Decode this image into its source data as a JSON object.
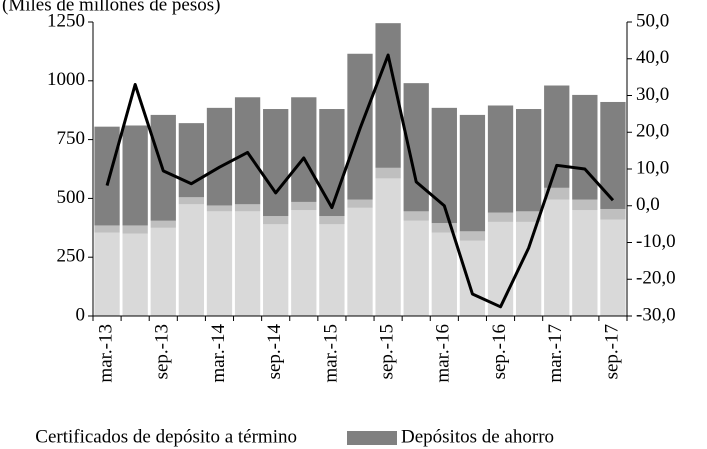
{
  "chart_data": {
    "type": "bar",
    "title": "(Miles de millones de pesos)",
    "categories": [
      "mar.-13",
      null,
      "sep.-13",
      null,
      "mar.-14",
      null,
      "sep.-14",
      null,
      "mar.-15",
      null,
      "sep.-15",
      null,
      "mar.-16",
      null,
      "sep.-16",
      null,
      "mar.-17",
      null,
      "sep.-17"
    ],
    "series": [
      {
        "name": "Certificados de depósito a término",
        "color": "#d9d9d9",
        "values": [
          355,
          350,
          375,
          475,
          445,
          445,
          390,
          450,
          390,
          460,
          585,
          405,
          355,
          320,
          400,
          400,
          495,
          450,
          410
        ]
      },
      {
        "color": "#bfbfbf",
        "values": [
          30,
          35,
          30,
          30,
          25,
          30,
          35,
          35,
          35,
          35,
          45,
          40,
          40,
          40,
          40,
          45,
          50,
          45,
          45
        ]
      },
      {
        "name": "Depósitos de ahorro",
        "color": "#808080",
        "values": [
          420,
          425,
          450,
          315,
          415,
          455,
          455,
          445,
          455,
          620,
          615,
          545,
          490,
          495,
          455,
          435,
          435,
          445,
          455
        ]
      },
      {
        "type": "line",
        "axis": "y2",
        "color": "#000000",
        "values": [
          5.5,
          33,
          9.5,
          6,
          10.5,
          14.5,
          3.5,
          13,
          -0.5,
          21,
          41,
          6.5,
          0,
          -24,
          -27.5,
          -11.5,
          11,
          10,
          1.5
        ]
      }
    ],
    "stacked": true,
    "ylim": [
      0,
      1250
    ],
    "yticks": [
      0,
      250,
      500,
      750,
      1000,
      1250
    ],
    "y2lim": [
      -30,
      50
    ],
    "y2ticks": [
      {
        "value": -30,
        "label": "-30,0"
      },
      {
        "value": -20,
        "label": "-20,0"
      },
      {
        "value": -10,
        "label": "-10,0"
      },
      {
        "value": 0,
        "label": "0,0"
      },
      {
        "value": 10,
        "label": "10,0"
      },
      {
        "value": 20,
        "label": "20,0"
      },
      {
        "value": 30,
        "label": "30,0"
      },
      {
        "value": 40,
        "label": "40,0"
      },
      {
        "value": 50,
        "label": "50,0"
      }
    ],
    "legend": "bottom"
  }
}
